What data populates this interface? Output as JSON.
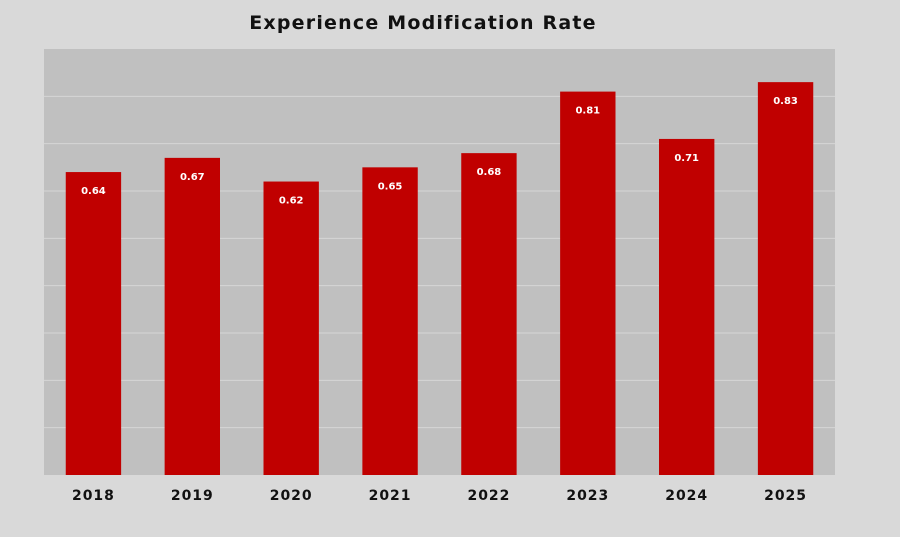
{
  "chart_data": {
    "type": "bar",
    "title": "Experience Modification Rate",
    "categories": [
      "2018",
      "2019",
      "2020",
      "2021",
      "2022",
      "2023",
      "2024",
      "2025"
    ],
    "values": [
      0.64,
      0.67,
      0.62,
      0.65,
      0.68,
      0.81,
      0.71,
      0.83
    ],
    "data_labels": [
      "0.64",
      "0.67",
      "0.62",
      "0.65",
      "0.68",
      "0.81",
      "0.71",
      "0.83"
    ],
    "ylim": [
      0,
      0.9
    ],
    "grid": true,
    "legend": "none",
    "colors": {
      "bar": "#c00000",
      "plot_background": "#c0c0c0",
      "page_background": "#d9d9d9",
      "gridline": "#d6d6d6"
    }
  }
}
